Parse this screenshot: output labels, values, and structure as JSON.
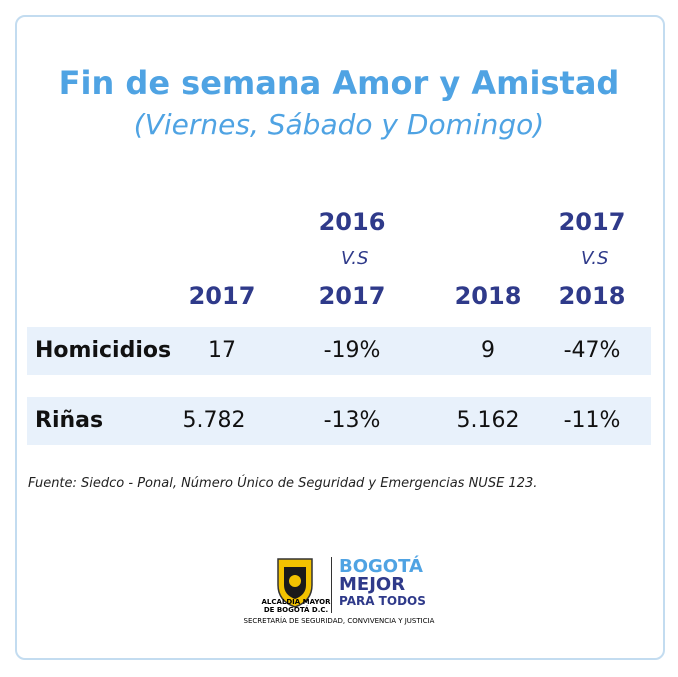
{
  "header": {
    "title": "Fin de semana Amor y Amistad",
    "subtitle": "(Viernes, Sábado y Domingo)"
  },
  "table": {
    "columns": [
      {
        "lines": [
          "2017"
        ]
      },
      {
        "lines": [
          "2016",
          "V.S",
          "2017"
        ]
      },
      {
        "lines": [
          "2018"
        ]
      },
      {
        "lines": [
          "2017",
          "V.S",
          "2018"
        ]
      }
    ],
    "rows": [
      [
        "Homicidios",
        "17",
        "-19%",
        "9",
        "-47%"
      ],
      [
        "Riñas",
        "5.782",
        "-13%",
        "5.162",
        "-11%"
      ]
    ]
  },
  "source": "Fuente: Siedco - Ponal, Número Único de Seguridad y Emergencias NUSE 123.",
  "logo": {
    "left": [
      "ALCALDÍA MAYOR",
      "DE BOGOTÁ D.C."
    ],
    "brand": "BOGOTÁ",
    "brand2": "MEJOR",
    "brand3": "PARA TODOS",
    "footer": "SECRETARÍA DE SEGURIDAD, CONVIVENCIA Y JUSTICIA"
  }
}
